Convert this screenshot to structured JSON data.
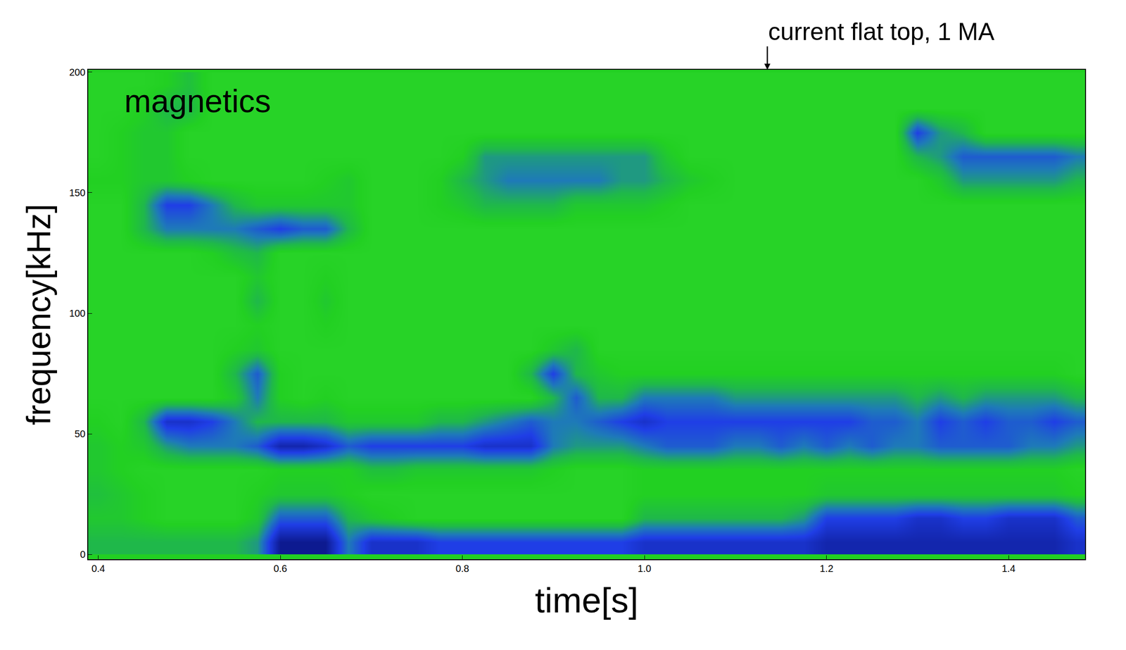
{
  "chart_data": {
    "type": "heatmap",
    "x_label": "time[s]",
    "y_label": "frequency[kHz]",
    "annotations": [
      {
        "text": "current flat top, 1 MA",
        "x": 1.135
      },
      {
        "text": "magnetics"
      }
    ],
    "xlim": [
      0.389,
      1.484
    ],
    "ylim": [
      -2,
      201
    ],
    "xticks": [
      0.4,
      0.6,
      0.8,
      {
        "value": 1,
        "label": "1.0"
      },
      1.2,
      1.4
    ],
    "yticks": [
      0,
      50,
      100,
      150,
      200
    ],
    "zlim": [
      0,
      1
    ],
    "x": [
      0.4,
      0.425,
      0.45,
      0.475,
      0.5,
      0.525,
      0.55,
      0.575,
      0.6,
      0.625,
      0.65,
      0.675,
      0.7,
      0.725,
      0.75,
      0.775,
      0.8,
      0.825,
      0.85,
      0.875,
      0.9,
      0.925,
      0.95,
      0.975,
      1.0,
      1.025,
      1.05,
      1.075,
      1.1,
      1.125,
      1.15,
      1.175,
      1.2,
      1.225,
      1.25,
      1.275,
      1.3,
      1.325,
      1.35,
      1.375,
      1.4,
      1.425,
      1.45,
      1.475
    ],
    "y": [
      5,
      15,
      25,
      35,
      45,
      55,
      65,
      75,
      85,
      95,
      105,
      115,
      125,
      135,
      145,
      155,
      165,
      175,
      185,
      195
    ],
    "cells": [
      [
        0.3,
        0.3,
        0.3,
        0.3,
        0.3,
        0.3,
        0.3,
        0.4,
        1.0,
        1.0,
        1.0,
        0.5,
        0.8,
        0.8,
        0.8,
        0.7,
        0.7,
        0.7,
        0.7,
        0.7,
        0.7,
        0.7,
        0.7,
        0.7,
        0.8,
        0.8,
        0.8,
        0.8,
        0.8,
        0.8,
        0.8,
        0.8,
        0.9,
        0.9,
        0.9,
        0.9,
        0.9,
        0.9,
        0.9,
        0.9,
        0.9,
        0.9,
        0.9,
        0.8
      ],
      [
        0.2,
        0.2,
        0.15,
        0.1,
        0.1,
        0.1,
        0.1,
        0.2,
        0.6,
        0.6,
        0.6,
        0.3,
        0.2,
        0.15,
        0.1,
        0.1,
        0.1,
        0.1,
        0.1,
        0.1,
        0.1,
        0.1,
        0.1,
        0.1,
        0.3,
        0.3,
        0.3,
        0.3,
        0.3,
        0.3,
        0.3,
        0.4,
        0.7,
        0.7,
        0.7,
        0.7,
        0.8,
        0.8,
        0.7,
        0.7,
        0.8,
        0.8,
        0.8,
        0.6
      ],
      [
        0.25,
        0.2,
        0.15,
        0.1,
        0.1,
        0.1,
        0.1,
        0.15,
        0.2,
        0.2,
        0.2,
        0.15,
        0.1,
        0.1,
        0.1,
        0.1,
        0.1,
        0.1,
        0.1,
        0.1,
        0.1,
        0.1,
        0.1,
        0.1,
        0.15,
        0.15,
        0.15,
        0.15,
        0.15,
        0.15,
        0.15,
        0.15,
        0.2,
        0.2,
        0.2,
        0.2,
        0.2,
        0.2,
        0.2,
        0.2,
        0.2,
        0.2,
        0.2,
        0.15
      ],
      [
        0.2,
        0.15,
        0.1,
        0.1,
        0.1,
        0.1,
        0.1,
        0.1,
        0.15,
        0.15,
        0.15,
        0.15,
        0.25,
        0.25,
        0.2,
        0.2,
        0.2,
        0.2,
        0.2,
        0.2,
        0.15,
        0.1,
        0.1,
        0.1,
        0.15,
        0.15,
        0.15,
        0.15,
        0.15,
        0.15,
        0.15,
        0.15,
        0.15,
        0.15,
        0.15,
        0.15,
        0.15,
        0.15,
        0.15,
        0.15,
        0.15,
        0.15,
        0.15,
        0.1
      ],
      [
        0.2,
        0.15,
        0.2,
        0.4,
        0.5,
        0.5,
        0.5,
        0.6,
        0.9,
        0.9,
        0.8,
        0.6,
        0.7,
        0.7,
        0.7,
        0.7,
        0.7,
        0.8,
        0.8,
        0.8,
        0.5,
        0.4,
        0.4,
        0.4,
        0.5,
        0.6,
        0.6,
        0.6,
        0.5,
        0.5,
        0.6,
        0.5,
        0.6,
        0.5,
        0.6,
        0.5,
        0.5,
        0.6,
        0.6,
        0.6,
        0.6,
        0.5,
        0.5,
        0.4
      ],
      [
        0.15,
        0.1,
        0.3,
        0.8,
        0.8,
        0.7,
        0.5,
        0.3,
        0.3,
        0.3,
        0.3,
        0.2,
        0.2,
        0.2,
        0.2,
        0.3,
        0.3,
        0.4,
        0.5,
        0.6,
        0.5,
        0.5,
        0.6,
        0.7,
        0.8,
        0.7,
        0.7,
        0.7,
        0.7,
        0.7,
        0.7,
        0.7,
        0.7,
        0.7,
        0.6,
        0.6,
        0.5,
        0.7,
        0.6,
        0.7,
        0.6,
        0.6,
        0.7,
        0.6
      ],
      [
        0.1,
        0.1,
        0.1,
        0.1,
        0.1,
        0.1,
        0.2,
        0.5,
        0.15,
        0.1,
        0.15,
        0.1,
        0.1,
        0.1,
        0.1,
        0.1,
        0.1,
        0.1,
        0.1,
        0.1,
        0.3,
        0.6,
        0.3,
        0.3,
        0.5,
        0.5,
        0.5,
        0.5,
        0.4,
        0.4,
        0.4,
        0.4,
        0.4,
        0.4,
        0.4,
        0.4,
        0.3,
        0.4,
        0.3,
        0.4,
        0.4,
        0.4,
        0.4,
        0.3
      ],
      [
        0.1,
        0.1,
        0.1,
        0.1,
        0.1,
        0.1,
        0.3,
        0.6,
        0.15,
        0.1,
        0.1,
        0.1,
        0.1,
        0.1,
        0.1,
        0.1,
        0.1,
        0.1,
        0.1,
        0.3,
        0.7,
        0.3,
        0.2,
        0.15,
        0.15,
        0.15,
        0.15,
        0.15,
        0.15,
        0.15,
        0.15,
        0.15,
        0.15,
        0.15,
        0.15,
        0.15,
        0.15,
        0.15,
        0.15,
        0.15,
        0.15,
        0.15,
        0.15,
        0.1
      ],
      [
        0.1,
        0.1,
        0.1,
        0.1,
        0.1,
        0.1,
        0.15,
        0.2,
        0.1,
        0.1,
        0.1,
        0.1,
        0.1,
        0.1,
        0.1,
        0.1,
        0.1,
        0.1,
        0.1,
        0.1,
        0.2,
        0.3,
        0.1,
        0.1,
        0.1,
        0.1,
        0.1,
        0.1,
        0.1,
        0.1,
        0.1,
        0.1,
        0.1,
        0.1,
        0.1,
        0.1,
        0.1,
        0.1,
        0.1,
        0.1,
        0.1,
        0.1,
        0.1,
        0.1
      ],
      [
        0.1,
        0.1,
        0.1,
        0.1,
        0.1,
        0.1,
        0.1,
        0.15,
        0.1,
        0.1,
        0.15,
        0.1,
        0.1,
        0.1,
        0.1,
        0.1,
        0.1,
        0.1,
        0.1,
        0.1,
        0.1,
        0.1,
        0.1,
        0.1,
        0.1,
        0.1,
        0.1,
        0.1,
        0.1,
        0.1,
        0.1,
        0.1,
        0.1,
        0.1,
        0.1,
        0.1,
        0.1,
        0.1,
        0.1,
        0.1,
        0.1,
        0.1,
        0.1,
        0.1
      ],
      [
        0.1,
        0.1,
        0.1,
        0.1,
        0.1,
        0.1,
        0.1,
        0.3,
        0.1,
        0.1,
        0.2,
        0.1,
        0.1,
        0.1,
        0.1,
        0.1,
        0.1,
        0.1,
        0.1,
        0.1,
        0.1,
        0.1,
        0.1,
        0.1,
        0.1,
        0.1,
        0.1,
        0.1,
        0.1,
        0.1,
        0.1,
        0.1,
        0.1,
        0.1,
        0.1,
        0.1,
        0.1,
        0.1,
        0.1,
        0.1,
        0.1,
        0.1,
        0.1,
        0.1
      ],
      [
        0.1,
        0.1,
        0.1,
        0.1,
        0.1,
        0.1,
        0.1,
        0.2,
        0.1,
        0.1,
        0.15,
        0.1,
        0.1,
        0.1,
        0.1,
        0.1,
        0.1,
        0.1,
        0.1,
        0.1,
        0.1,
        0.1,
        0.1,
        0.1,
        0.1,
        0.1,
        0.1,
        0.1,
        0.1,
        0.1,
        0.1,
        0.1,
        0.1,
        0.1,
        0.1,
        0.1,
        0.1,
        0.1,
        0.1,
        0.1,
        0.1,
        0.1,
        0.1,
        0.1
      ],
      [
        0.1,
        0.1,
        0.1,
        0.1,
        0.1,
        0.15,
        0.25,
        0.3,
        0.1,
        0.1,
        0.1,
        0.1,
        0.1,
        0.1,
        0.1,
        0.1,
        0.1,
        0.1,
        0.1,
        0.1,
        0.1,
        0.1,
        0.1,
        0.1,
        0.1,
        0.1,
        0.1,
        0.1,
        0.1,
        0.1,
        0.1,
        0.1,
        0.1,
        0.1,
        0.1,
        0.1,
        0.1,
        0.1,
        0.1,
        0.1,
        0.1,
        0.1,
        0.1,
        0.1
      ],
      [
        0.1,
        0.1,
        0.3,
        0.5,
        0.5,
        0.5,
        0.5,
        0.6,
        0.7,
        0.6,
        0.6,
        0.3,
        0.1,
        0.1,
        0.1,
        0.1,
        0.1,
        0.1,
        0.1,
        0.1,
        0.1,
        0.1,
        0.1,
        0.1,
        0.1,
        0.1,
        0.1,
        0.1,
        0.1,
        0.1,
        0.1,
        0.1,
        0.1,
        0.1,
        0.1,
        0.1,
        0.1,
        0.1,
        0.1,
        0.1,
        0.1,
        0.1,
        0.1,
        0.1
      ],
      [
        0.1,
        0.1,
        0.3,
        0.7,
        0.7,
        0.5,
        0.3,
        0.2,
        0.2,
        0.2,
        0.2,
        0.2,
        0.1,
        0.1,
        0.1,
        0.15,
        0.2,
        0.3,
        0.3,
        0.3,
        0.3,
        0.2,
        0.2,
        0.2,
        0.2,
        0.15,
        0.1,
        0.1,
        0.1,
        0.1,
        0.1,
        0.1,
        0.1,
        0.1,
        0.1,
        0.1,
        0.1,
        0.1,
        0.1,
        0.1,
        0.1,
        0.1,
        0.1,
        0.1
      ],
      [
        0.15,
        0.15,
        0.2,
        0.2,
        0.15,
        0.1,
        0.1,
        0.1,
        0.1,
        0.1,
        0.15,
        0.2,
        0.1,
        0.1,
        0.1,
        0.15,
        0.3,
        0.4,
        0.5,
        0.5,
        0.5,
        0.5,
        0.5,
        0.4,
        0.4,
        0.3,
        0.2,
        0.15,
        0.1,
        0.1,
        0.1,
        0.1,
        0.1,
        0.1,
        0.1,
        0.1,
        0.1,
        0.2,
        0.4,
        0.4,
        0.4,
        0.4,
        0.4,
        0.3
      ],
      [
        0.1,
        0.15,
        0.2,
        0.2,
        0.1,
        0.1,
        0.1,
        0.1,
        0.1,
        0.1,
        0.1,
        0.1,
        0.1,
        0.1,
        0.1,
        0.1,
        0.15,
        0.4,
        0.4,
        0.4,
        0.4,
        0.4,
        0.4,
        0.4,
        0.4,
        0.2,
        0.1,
        0.1,
        0.1,
        0.1,
        0.1,
        0.1,
        0.1,
        0.1,
        0.1,
        0.1,
        0.3,
        0.4,
        0.6,
        0.6,
        0.6,
        0.6,
        0.6,
        0.5
      ],
      [
        0.1,
        0.15,
        0.2,
        0.2,
        0.1,
        0.1,
        0.1,
        0.1,
        0.1,
        0.1,
        0.1,
        0.1,
        0.1,
        0.1,
        0.1,
        0.1,
        0.1,
        0.1,
        0.1,
        0.1,
        0.1,
        0.1,
        0.1,
        0.1,
        0.1,
        0.1,
        0.1,
        0.1,
        0.1,
        0.1,
        0.1,
        0.1,
        0.1,
        0.1,
        0.1,
        0.1,
        0.7,
        0.4,
        0.3,
        0.1,
        0.1,
        0.1,
        0.1,
        0.1
      ],
      [
        0.1,
        0.1,
        0.15,
        0.3,
        0.3,
        0.1,
        0.1,
        0.1,
        0.1,
        0.1,
        0.1,
        0.1,
        0.1,
        0.1,
        0.1,
        0.1,
        0.1,
        0.1,
        0.1,
        0.1,
        0.1,
        0.1,
        0.1,
        0.1,
        0.1,
        0.1,
        0.1,
        0.1,
        0.1,
        0.1,
        0.1,
        0.1,
        0.1,
        0.1,
        0.1,
        0.1,
        0.1,
        0.1,
        0.1,
        0.1,
        0.1,
        0.1,
        0.1,
        0.1
      ],
      [
        0.1,
        0.1,
        0.1,
        0.15,
        0.25,
        0.1,
        0.1,
        0.1,
        0.1,
        0.1,
        0.1,
        0.1,
        0.1,
        0.1,
        0.1,
        0.1,
        0.1,
        0.1,
        0.1,
        0.1,
        0.1,
        0.1,
        0.1,
        0.1,
        0.1,
        0.1,
        0.1,
        0.1,
        0.1,
        0.1,
        0.1,
        0.1,
        0.1,
        0.1,
        0.1,
        0.1,
        0.1,
        0.1,
        0.1,
        0.1,
        0.1,
        0.1,
        0.1,
        0.1
      ]
    ]
  }
}
